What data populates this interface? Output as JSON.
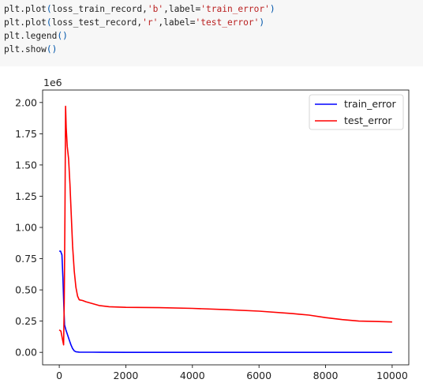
{
  "code": {
    "lines": [
      [
        {
          "t": "plt.plot",
          "c": ""
        },
        {
          "t": "(",
          "c": "paren"
        },
        {
          "t": "loss_train_record,",
          "c": ""
        },
        {
          "t": "'b'",
          "c": "str"
        },
        {
          "t": ",label=",
          "c": ""
        },
        {
          "t": "'train_error'",
          "c": "str"
        },
        {
          "t": ")",
          "c": "paren"
        }
      ],
      [
        {
          "t": "plt.plot",
          "c": ""
        },
        {
          "t": "(",
          "c": "paren"
        },
        {
          "t": "loss_test_record,",
          "c": ""
        },
        {
          "t": "'r'",
          "c": "str"
        },
        {
          "t": ",label=",
          "c": ""
        },
        {
          "t": "'test_error'",
          "c": "str"
        },
        {
          "t": ")",
          "c": "paren"
        }
      ],
      [
        {
          "t": "plt.legend",
          "c": ""
        },
        {
          "t": "()",
          "c": "paren"
        }
      ],
      [
        {
          "t": "plt.show",
          "c": ""
        },
        {
          "t": "()",
          "c": "paren"
        }
      ]
    ]
  },
  "chart_data": {
    "type": "line",
    "title": "",
    "xlabel": "",
    "ylabel": "",
    "y_offset_label": "1e6",
    "xlim": [
      -500,
      10500
    ],
    "ylim": [
      -0.1,
      2.1
    ],
    "xticks": [
      0,
      2000,
      4000,
      6000,
      8000,
      10000
    ],
    "xtick_labels": [
      "0",
      "2000",
      "4000",
      "6000",
      "8000",
      "10000"
    ],
    "yticks": [
      0.0,
      0.25,
      0.5,
      0.75,
      1.0,
      1.25,
      1.5,
      1.75,
      2.0
    ],
    "ytick_labels": [
      "0.00",
      "0.25",
      "0.50",
      "0.75",
      "1.00",
      "1.25",
      "1.50",
      "1.75",
      "2.00"
    ],
    "grid": false,
    "legend_position": "top-right",
    "series": [
      {
        "name": "train_error",
        "color": "#0000ff",
        "x": [
          0,
          40,
          80,
          110,
          140,
          160,
          200,
          250,
          300,
          350,
          400,
          450,
          500,
          600,
          1000,
          2000,
          4000,
          6000,
          8000,
          10000
        ],
        "y": [
          0.81,
          0.81,
          0.78,
          0.6,
          0.35,
          0.22,
          0.18,
          0.14,
          0.1,
          0.06,
          0.03,
          0.012,
          0.005,
          0.002,
          0.001,
          0.0,
          0.0,
          0.0,
          0.0,
          0.0
        ]
      },
      {
        "name": "test_error",
        "color": "#ff0000",
        "x": [
          0,
          50,
          100,
          130,
          150,
          170,
          190,
          210,
          240,
          280,
          320,
          360,
          400,
          450,
          500,
          550,
          600,
          700,
          800,
          1000,
          1200,
          1500,
          2000,
          3000,
          4000,
          5000,
          6000,
          7000,
          7500,
          8000,
          8500,
          9000,
          9500,
          10000
        ],
        "y": [
          0.18,
          0.17,
          0.1,
          0.06,
          0.4,
          1.1,
          1.97,
          1.8,
          1.65,
          1.55,
          1.35,
          1.1,
          0.85,
          0.65,
          0.52,
          0.45,
          0.42,
          0.415,
          0.405,
          0.39,
          0.375,
          0.365,
          0.36,
          0.358,
          0.352,
          0.342,
          0.33,
          0.31,
          0.298,
          0.278,
          0.262,
          0.25,
          0.247,
          0.243
        ]
      }
    ]
  }
}
